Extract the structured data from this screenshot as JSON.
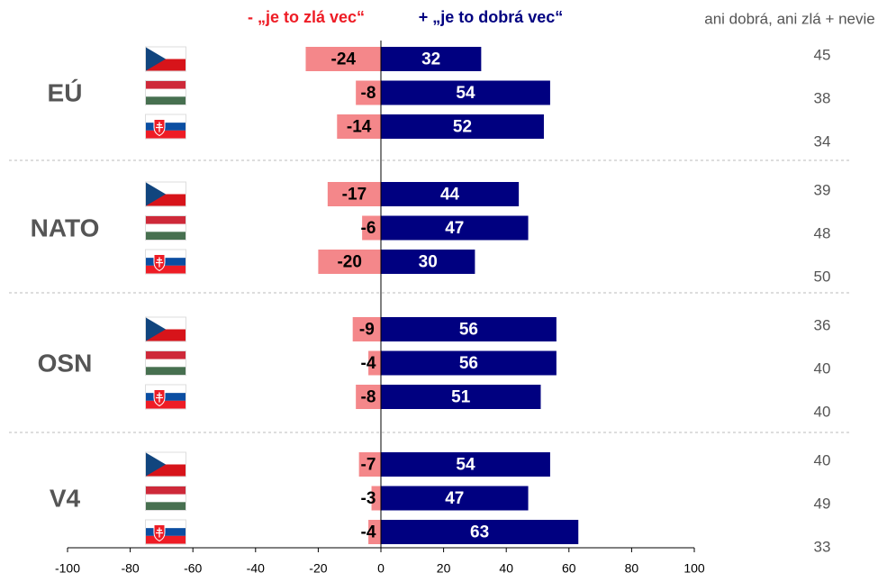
{
  "chart_data": {
    "type": "bar",
    "orientation": "horizontal",
    "groups": [
      "EÚ",
      "NATO",
      "OSN",
      "V4"
    ],
    "series": [
      {
        "name": "- „je to zlá vec“",
        "color": "#f4878a",
        "label_color": "#ee1c25",
        "values": [
          -24,
          -8,
          -14,
          -17,
          -6,
          -20,
          -9,
          -4,
          -8,
          -7,
          -3,
          -4
        ]
      },
      {
        "name": "+ „je to dobrá vec“",
        "color": "#000080",
        "label_color": "#000080",
        "values": [
          32,
          54,
          52,
          44,
          47,
          30,
          56,
          56,
          51,
          54,
          47,
          63
        ]
      }
    ],
    "neutral": {
      "name": "ani dobrá, ani zlá + nevie",
      "values": [
        45,
        38,
        34,
        39,
        48,
        50,
        36,
        40,
        40,
        40,
        49,
        33
      ]
    },
    "xlim": [
      -100,
      100
    ],
    "xticks": [
      -100,
      -80,
      -60,
      -40,
      -20,
      0,
      20,
      40,
      60,
      80,
      100
    ]
  }
}
